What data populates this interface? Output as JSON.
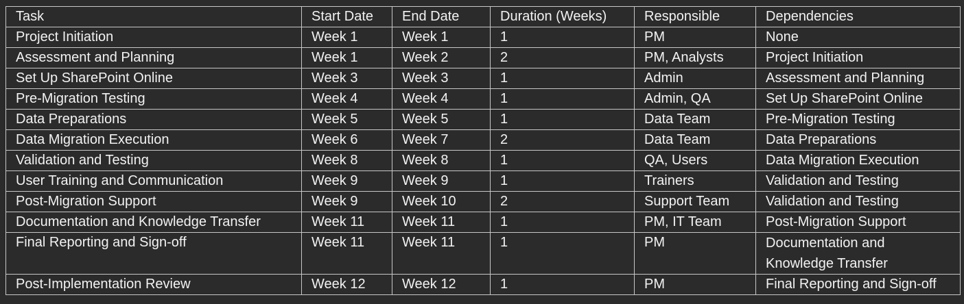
{
  "table": {
    "headers": [
      "Task",
      "Start Date",
      "End Date",
      "Duration (Weeks)",
      "Responsible",
      "Dependencies"
    ],
    "rows": [
      [
        "Project Initiation",
        "Week 1",
        "Week 1",
        "1",
        "PM",
        "None"
      ],
      [
        "Assessment and Planning",
        "Week 1",
        "Week 2",
        "2",
        "PM, Analysts",
        "Project Initiation"
      ],
      [
        "Set Up SharePoint Online",
        "Week 3",
        "Week 3",
        "1",
        "Admin",
        "Assessment and Planning"
      ],
      [
        "Pre-Migration Testing",
        "Week 4",
        "Week 4",
        "1",
        "Admin, QA",
        "Set Up SharePoint Online"
      ],
      [
        "Data Preparations",
        "Week 5",
        "Week 5",
        "1",
        "Data Team",
        "Pre-Migration Testing"
      ],
      [
        "Data Migration Execution",
        "Week 6",
        "Week 7",
        "2",
        "Data Team",
        "Data Preparations"
      ],
      [
        "Validation and Testing",
        "Week 8",
        "Week 8",
        "1",
        "QA, Users",
        "Data Migration Execution"
      ],
      [
        "User Training and Communication",
        "Week 9",
        "Week 9",
        "1",
        "Trainers",
        "Validation and Testing"
      ],
      [
        "Post-Migration Support",
        "Week 9",
        "Week 10",
        "2",
        "Support Team",
        "Validation and Testing"
      ],
      [
        "Documentation and Knowledge Transfer",
        "Week 11",
        "Week 11",
        "1",
        "PM, IT Team",
        "Post-Migration Support"
      ],
      [
        "Final Reporting and Sign-off",
        "Week 11",
        "Week 11",
        "1",
        "PM",
        "Documentation and Knowledge Transfer"
      ],
      [
        "Post-Implementation Review",
        "Week 12",
        "Week 12",
        "1",
        "PM",
        "Final Reporting and Sign-off"
      ]
    ]
  },
  "colors": {
    "background": "#2b2b2b",
    "text": "#f2f2f2",
    "border": "#c8c8c8"
  }
}
